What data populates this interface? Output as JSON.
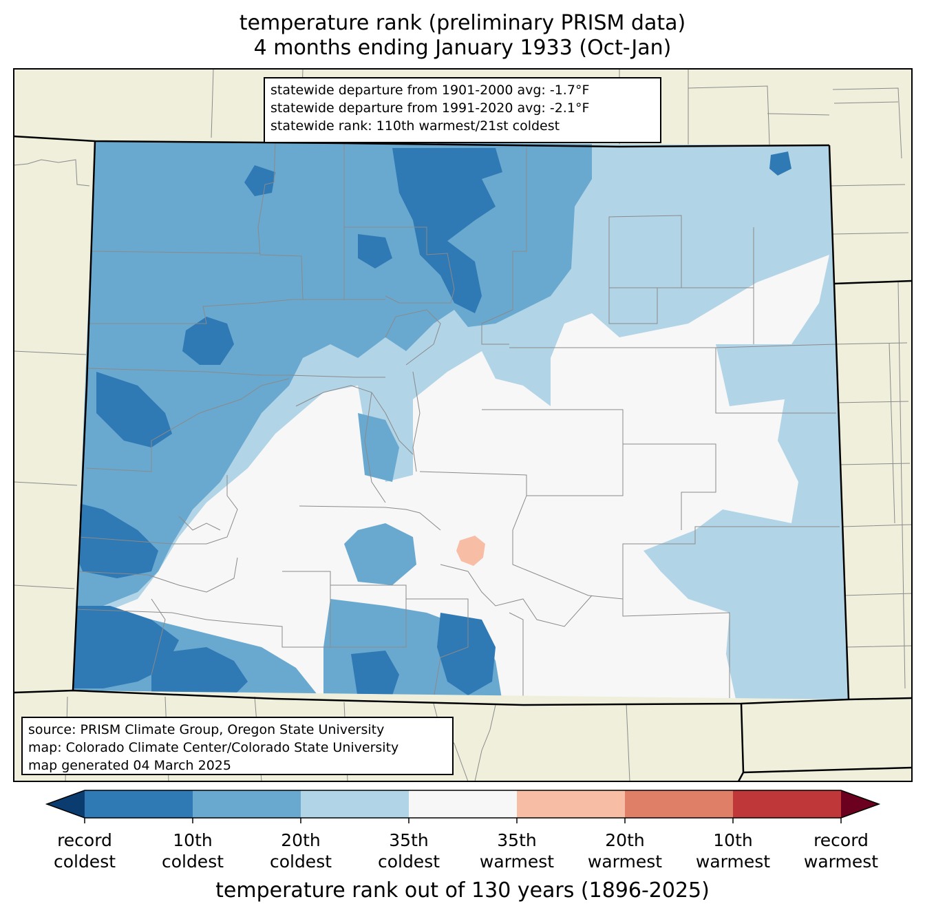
{
  "title_line1": "temperature rank (preliminary PRISM data)",
  "title_line2": "4 months ending January 1933 (Oct-Jan)",
  "stats": [
    "statewide departure from 1901-2000 avg: -1.7°F",
    "statewide departure from 1991-2020 avg: -2.1°F",
    "statewide rank: 110th warmest/21st coldest"
  ],
  "source": [
    "source: PRISM Climate Group, Oregon State University",
    "map: Colorado Climate Center/Colorado State University",
    "map generated 04 March 2025"
  ],
  "colorbar": {
    "label": "temperature rank out of 130 years (1896-2025)",
    "ticks": [
      [
        "record",
        "coldest"
      ],
      [
        "10th",
        "coldest"
      ],
      [
        "20th",
        "coldest"
      ],
      [
        "35th",
        "coldest"
      ],
      [
        "35th",
        "warmest"
      ],
      [
        "20th",
        "warmest"
      ],
      [
        "10th",
        "warmest"
      ],
      [
        "record",
        "warmest"
      ]
    ],
    "colors": [
      "#2f79b5",
      "#69a9d0",
      "#b1d4e7",
      "#f7f7f7",
      "#f8bea5",
      "#e07f68",
      "#c0373a"
    ],
    "under_color": "#0a3c70",
    "over_color": "#6b011f"
  },
  "map_colors": {
    "land": "#efefdc",
    "record_coldest_to_10th": "#2f79b5",
    "10th_to_20th_coldest": "#69a9d0",
    "20th_to_35th_coldest": "#b1d4e7",
    "near_normal": "#f7f7f7",
    "35th_to_20th_warmest": "#f8bea5"
  }
}
